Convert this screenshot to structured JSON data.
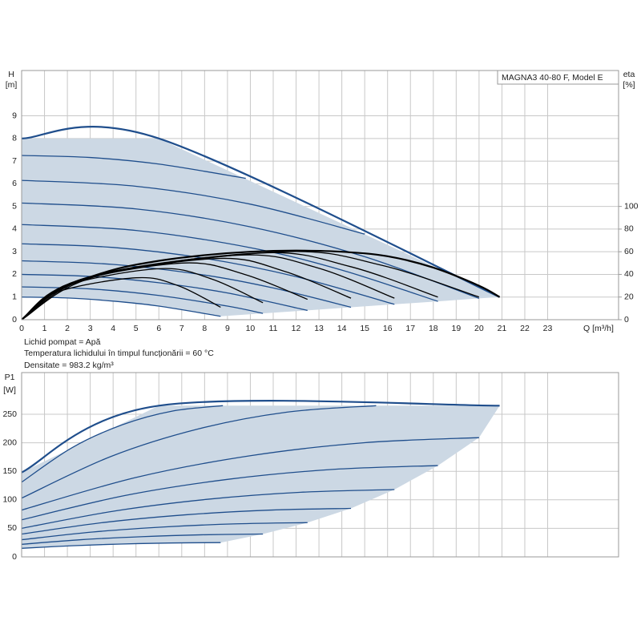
{
  "chart_data": [
    {
      "type": "line",
      "title": "MAGNA3 40-80 F, Model E",
      "ylabel": "H",
      "ylabel_unit": "[m]",
      "y2label": "eta",
      "y2label_unit": "[%]",
      "xlabel": "Q [m³/h]",
      "annotations": [
        "Lichid pompat = Apă",
        "Temperatura lichidului în timpul funcţionării = 60 °C",
        "Densitate = 983.2 kg/m³"
      ],
      "xlim": [
        0,
        26.1
      ],
      "xticks": [
        0,
        1,
        2,
        3,
        4,
        5,
        6,
        7,
        8,
        9,
        10,
        11,
        12,
        13,
        14,
        15,
        16,
        17,
        18,
        19,
        20,
        21,
        22,
        23
      ],
      "ylim": [
        0,
        11
      ],
      "yticks": [
        0,
        1,
        2,
        3,
        4,
        5,
        6,
        7,
        8,
        9
      ],
      "y2lim": [
        0,
        220
      ],
      "y2ticks": [
        0,
        20,
        40,
        60,
        80,
        100
      ],
      "grid": true,
      "fill_color": "#ccd8e4",
      "series": [
        {
          "color": "#1f4e8c",
          "x": [
            0,
            6,
            20.9
          ],
          "values": [
            8,
            8,
            1.0
          ]
        },
        {
          "color": "#1f4e8c",
          "x": [
            0,
            3,
            6,
            9.8
          ],
          "values": [
            7.25,
            7.16,
            6.87,
            6.24
          ]
        },
        {
          "color": "#1f4e8c",
          "x": [
            0,
            5,
            10,
            15
          ],
          "values": [
            6.15,
            5.89,
            5.1,
            3.78
          ]
        },
        {
          "color": "#1f4e8c",
          "x": [
            0,
            5,
            10,
            15,
            20
          ],
          "values": [
            5.15,
            4.89,
            4.1,
            2.78,
            0.94
          ]
        },
        {
          "color": "#1f4e8c",
          "x": [
            0,
            5,
            10,
            14,
            18.2
          ],
          "values": [
            4.2,
            3.94,
            3.18,
            2.19,
            0.81
          ]
        },
        {
          "color": "#1f4e8c",
          "x": [
            0,
            4,
            8,
            12,
            16.3
          ],
          "values": [
            3.35,
            3.19,
            2.71,
            1.9,
            0.68
          ]
        },
        {
          "color": "#1f4e8c",
          "x": [
            0,
            4,
            8,
            11,
            14.4
          ],
          "values": [
            2.6,
            2.44,
            1.97,
            1.4,
            0.55
          ]
        },
        {
          "color": "#1f4e8c",
          "x": [
            0,
            3,
            6,
            9,
            12.5
          ],
          "values": [
            2.0,
            1.91,
            1.63,
            1.18,
            0.41
          ]
        },
        {
          "color": "#1f4e8c",
          "x": [
            0,
            3,
            6,
            9,
            10.55
          ],
          "values": [
            1.45,
            1.36,
            1.07,
            0.6,
            0.28
          ]
        },
        {
          "color": "#1f4e8c",
          "x": [
            0,
            2,
            4,
            6,
            8.7
          ],
          "values": [
            1.0,
            0.96,
            0.82,
            0.6,
            0.15
          ]
        },
        {
          "color": "#000000",
          "axis": "y2",
          "x": [
            0,
            1,
            2,
            4,
            6,
            8,
            10,
            12,
            14,
            16,
            18,
            20,
            20.9
          ],
          "values": [
            0,
            18,
            30,
            44,
            52,
            57,
            60,
            61,
            60,
            56,
            46,
            30,
            20
          ]
        },
        {
          "color": "#000000",
          "axis": "y2",
          "x": [
            0,
            1.5,
            5,
            6.85,
            8.7
          ],
          "values": [
            0,
            24,
            37,
            30,
            11
          ]
        },
        {
          "color": "#000000",
          "axis": "y2",
          "x": [
            0,
            1.8,
            6,
            8.3,
            10.55
          ],
          "values": [
            0,
            29,
            45,
            36,
            15
          ]
        },
        {
          "color": "#000000",
          "axis": "y2",
          "x": [
            0,
            2.1,
            7,
            9.75,
            12.5
          ],
          "values": [
            0,
            32,
            50,
            40,
            18
          ]
        },
        {
          "color": "#000000",
          "axis": "y2",
          "x": [
            0,
            2.5,
            8.5,
            11.45,
            14.4
          ],
          "values": [
            0,
            35,
            54,
            43,
            19
          ]
        },
        {
          "color": "#000000",
          "axis": "y2",
          "x": [
            0,
            2.8,
            9.5,
            12.9,
            16.3
          ],
          "values": [
            0,
            37,
            57,
            46,
            19
          ]
        },
        {
          "color": "#000000",
          "axis": "y2",
          "x": [
            0,
            3.1,
            10.5,
            14.35,
            18.2
          ],
          "values": [
            0,
            38,
            59,
            47,
            20
          ]
        },
        {
          "color": "#000000",
          "axis": "y2",
          "x": [
            0,
            3.4,
            11.5,
            15.75,
            20
          ],
          "values": [
            0,
            39,
            60,
            48,
            20
          ]
        }
      ]
    },
    {
      "type": "line",
      "ylabel": "P1",
      "ylabel_unit": "[W]",
      "xlim": [
        0,
        26.1
      ],
      "ylim": [
        0,
        323
      ],
      "yticks": [
        0,
        50,
        100,
        150,
        200,
        250
      ],
      "grid": true,
      "fill_color": "#ccd8e4",
      "series": [
        {
          "color": "#1f4e8c",
          "x": [
            0,
            6,
            20.9
          ],
          "values": [
            148,
            265,
            265
          ]
        },
        {
          "color": "#1f4e8c",
          "x": [
            0,
            2.2,
            4.4,
            6.6,
            8.8
          ],
          "values": [
            131,
            191.3,
            231.5,
            255.6,
            265
          ]
        },
        {
          "color": "#1f4e8c",
          "x": [
            0,
            3.9,
            7.75,
            11.6,
            15.5
          ],
          "values": [
            103,
            175.9,
            224.5,
            253.7,
            265
          ]
        },
        {
          "color": "#1f4e8c",
          "x": [
            0,
            5,
            10,
            15,
            20
          ],
          "values": [
            82,
            139.2,
            177.3,
            200.1,
            209
          ]
        },
        {
          "color": "#1f4e8c",
          "x": [
            0,
            4.55,
            9.1,
            13.65,
            18.2
          ],
          "values": [
            65,
            107.8,
            136.3,
            153.4,
            160
          ]
        },
        {
          "color": "#1f4e8c",
          "x": [
            0,
            4.1,
            8.15,
            12.2,
            16.3
          ],
          "values": [
            50,
            80.6,
            101,
            113.2,
            118
          ]
        },
        {
          "color": "#1f4e8c",
          "x": [
            0,
            3.6,
            7.2,
            10.8,
            14.4
          ],
          "values": [
            40,
            60.3,
            73.8,
            81.9,
            85
          ]
        },
        {
          "color": "#1f4e8c",
          "x": [
            0,
            3.1,
            6.25,
            9.4,
            12.5
          ],
          "values": [
            30,
            43.5,
            52.5,
            57.9,
            60
          ]
        },
        {
          "color": "#1f4e8c",
          "x": [
            0,
            2.6,
            5.3,
            7.9,
            10.55
          ],
          "values": [
            22,
            30.1,
            35.5,
            38.7,
            40
          ]
        },
        {
          "color": "#1f4e8c",
          "x": [
            0,
            2.2,
            4.35,
            6.5,
            8.7
          ],
          "values": [
            15,
            19.5,
            22.5,
            24.3,
            25
          ]
        }
      ]
    }
  ]
}
